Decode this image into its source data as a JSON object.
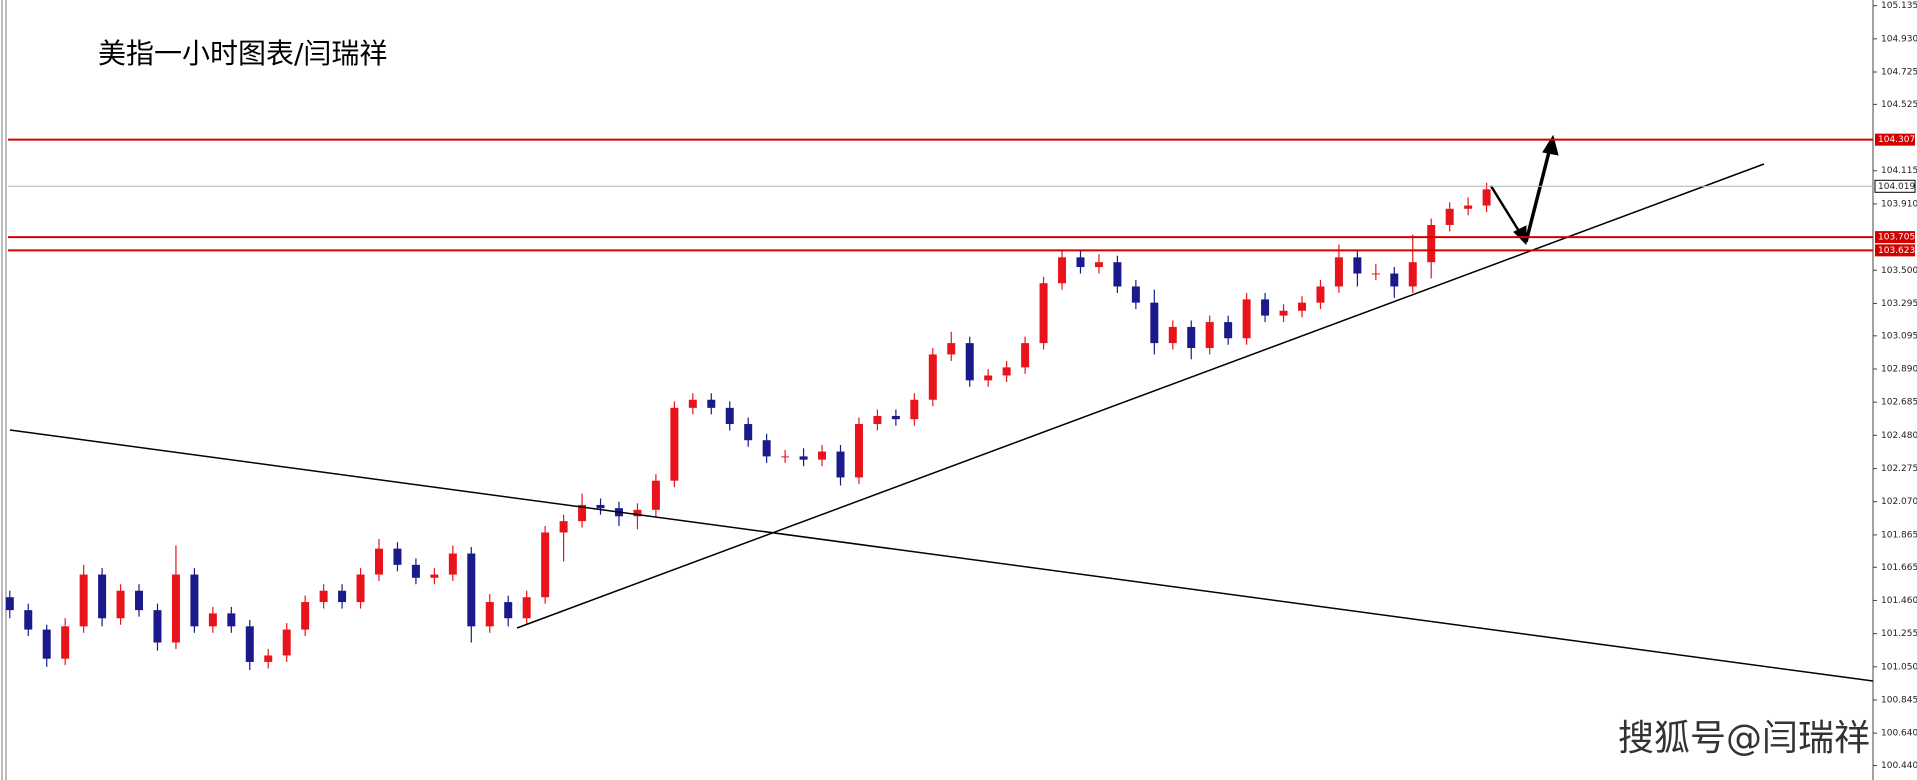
{
  "chart_data": {
    "type": "candlestick",
    "title": "美指一小时图表/闫瑞祥",
    "watermark": "搜狐号@闫瑞祥",
    "ylim": [
      100.4,
      105.17
    ],
    "yticks": [
      105.135,
      {
        "value": 104.93,
        "label": "104.930"
      },
      104.725,
      104.525,
      104.115,
      {
        "value": 103.91,
        "label": "103.910"
      },
      {
        "value": 103.5,
        "label": "103.500"
      },
      103.295,
      103.095,
      {
        "value": 102.89,
        "label": "102.890"
      },
      102.685,
      {
        "value": 102.48,
        "label": "102.480"
      },
      102.275,
      {
        "value": 102.07,
        "label": "102.070"
      },
      101.865,
      101.665,
      {
        "value": 101.46,
        "label": "101.460"
      },
      101.255,
      {
        "value": 101.05,
        "label": "101.050"
      },
      100.845,
      {
        "value": 100.64,
        "label": "100.640"
      },
      {
        "value": 100.44,
        "label": "100.440"
      }
    ],
    "up_color": "#e8141b",
    "down_color": "#1a1a8c",
    "levels": [
      104.307,
      103.705,
      103.623
    ],
    "level_color": "#d40000",
    "current_price": 104.019,
    "current_color": "#b4b4b4",
    "ohlc": [
      [
        101.48,
        101.52,
        101.35,
        101.4
      ],
      [
        101.4,
        101.44,
        101.24,
        101.28
      ],
      [
        101.28,
        101.31,
        101.05,
        101.1
      ],
      [
        101.1,
        101.35,
        101.06,
        101.3
      ],
      [
        101.3,
        101.68,
        101.26,
        101.62
      ],
      [
        101.62,
        101.66,
        101.3,
        101.35
      ],
      [
        101.35,
        101.56,
        101.31,
        101.52
      ],
      [
        101.52,
        101.56,
        101.36,
        101.4
      ],
      [
        101.4,
        101.44,
        101.15,
        101.2
      ],
      [
        101.2,
        101.8,
        101.16,
        101.62
      ],
      [
        101.62,
        101.66,
        101.26,
        101.3
      ],
      [
        101.3,
        101.42,
        101.26,
        101.38
      ],
      [
        101.38,
        101.42,
        101.26,
        101.3
      ],
      [
        101.3,
        101.34,
        101.03,
        101.08
      ],
      [
        101.08,
        101.16,
        101.04,
        101.12
      ],
      [
        101.12,
        101.32,
        101.08,
        101.28
      ],
      [
        101.28,
        101.49,
        101.24,
        101.45
      ],
      [
        101.45,
        101.56,
        101.41,
        101.52
      ],
      [
        101.52,
        101.56,
        101.41,
        101.45
      ],
      [
        101.45,
        101.66,
        101.41,
        101.62
      ],
      [
        101.62,
        101.84,
        101.58,
        101.78
      ],
      [
        101.78,
        101.82,
        101.64,
        101.68
      ],
      [
        101.68,
        101.72,
        101.56,
        101.6
      ],
      [
        101.6,
        101.66,
        101.56,
        101.62
      ],
      [
        101.62,
        101.8,
        101.58,
        101.75
      ],
      [
        101.75,
        101.79,
        101.2,
        101.3
      ],
      [
        101.3,
        101.5,
        101.26,
        101.45
      ],
      [
        101.45,
        101.49,
        101.3,
        101.35
      ],
      [
        101.35,
        101.52,
        101.31,
        101.48
      ],
      [
        101.48,
        101.92,
        101.44,
        101.88
      ],
      [
        101.88,
        101.99,
        101.7,
        101.95
      ],
      [
        101.95,
        102.12,
        101.91,
        102.05
      ],
      [
        102.05,
        102.09,
        101.99,
        102.03
      ],
      [
        102.03,
        102.07,
        101.92,
        101.98
      ],
      [
        101.98,
        102.06,
        101.9,
        102.02
      ],
      [
        102.02,
        102.24,
        101.98,
        102.2
      ],
      [
        102.2,
        102.69,
        102.16,
        102.65
      ],
      [
        102.65,
        102.74,
        102.61,
        102.7
      ],
      [
        102.7,
        102.74,
        102.61,
        102.65
      ],
      [
        102.65,
        102.69,
        102.51,
        102.55
      ],
      [
        102.55,
        102.59,
        102.41,
        102.45
      ],
      [
        102.45,
        102.49,
        102.31,
        102.35
      ],
      [
        102.35,
        102.39,
        102.31,
        102.35
      ],
      [
        102.35,
        102.4,
        102.29,
        102.33
      ],
      [
        102.33,
        102.42,
        102.29,
        102.38
      ],
      [
        102.38,
        102.42,
        102.17,
        102.22
      ],
      [
        102.22,
        102.59,
        102.18,
        102.55
      ],
      [
        102.55,
        102.64,
        102.51,
        102.6
      ],
      [
        102.6,
        102.64,
        102.54,
        102.58
      ],
      [
        102.58,
        102.74,
        102.54,
        102.7
      ],
      [
        102.7,
        103.02,
        102.66,
        102.98
      ],
      [
        102.98,
        103.12,
        102.94,
        103.05
      ],
      [
        103.05,
        103.09,
        102.78,
        102.82
      ],
      [
        102.82,
        102.89,
        102.78,
        102.85
      ],
      [
        102.85,
        102.94,
        102.81,
        102.9
      ],
      [
        102.9,
        103.09,
        102.86,
        103.05
      ],
      [
        103.05,
        103.46,
        103.01,
        103.42
      ],
      [
        103.42,
        103.62,
        103.38,
        103.58
      ],
      [
        103.58,
        103.62,
        103.48,
        103.52
      ],
      [
        103.52,
        103.6,
        103.48,
        103.55
      ],
      [
        103.55,
        103.59,
        103.36,
        103.4
      ],
      [
        103.4,
        103.44,
        103.26,
        103.3
      ],
      [
        103.3,
        103.38,
        102.98,
        103.05
      ],
      [
        103.05,
        103.19,
        103.01,
        103.15
      ],
      [
        103.15,
        103.19,
        102.95,
        103.02
      ],
      [
        103.02,
        103.22,
        102.98,
        103.18
      ],
      [
        103.18,
        103.22,
        103.04,
        103.08
      ],
      [
        103.08,
        103.36,
        103.04,
        103.32
      ],
      [
        103.32,
        103.36,
        103.18,
        103.22
      ],
      [
        103.22,
        103.29,
        103.18,
        103.25
      ],
      [
        103.25,
        103.34,
        103.21,
        103.3
      ],
      [
        103.3,
        103.44,
        103.26,
        103.4
      ],
      [
        103.4,
        103.66,
        103.36,
        103.58
      ],
      [
        103.58,
        103.62,
        103.4,
        103.48
      ],
      [
        103.48,
        103.54,
        103.44,
        103.48
      ],
      [
        103.48,
        103.52,
        103.33,
        103.4
      ],
      [
        103.4,
        103.72,
        103.36,
        103.55
      ],
      [
        103.55,
        103.82,
        103.45,
        103.78
      ],
      [
        103.78,
        103.92,
        103.74,
        103.88
      ],
      [
        103.88,
        103.95,
        103.84,
        103.9
      ],
      [
        103.9,
        104.04,
        103.86,
        104.0
      ]
    ]
  }
}
